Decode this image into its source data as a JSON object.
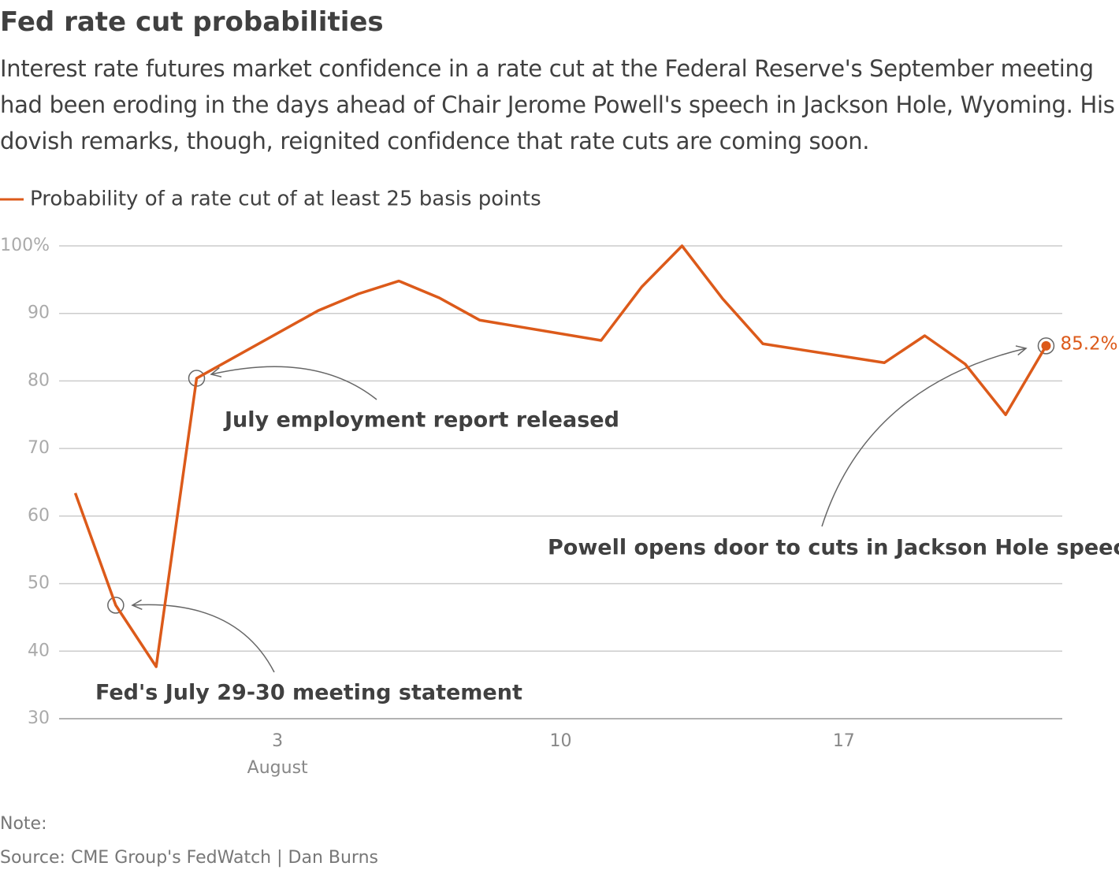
{
  "chart_data": {
    "type": "line",
    "title": "Fed rate cut probabilities",
    "subtitle": "Interest rate futures market confidence in a rate cut at the Federal Reserve's September meeting had been eroding in the days ahead of Chair Jerome Powell's speech in Jackson Hole, Wyoming. His dovish remarks, though, reignited confidence that rate cuts are coming soon.",
    "x": [
      -2,
      -1,
      0,
      1,
      4,
      5,
      6,
      7,
      8,
      11,
      12,
      13,
      14,
      15,
      18,
      19,
      20,
      21,
      22
    ],
    "xlabel": "August",
    "series": [
      {
        "name": "Probability of a rate cut of at least 25 basis points",
        "color": "#dc5a1a",
        "values": [
          63.4,
          46.8,
          37.7,
          80.4,
          90.4,
          92.9,
          94.8,
          92.3,
          89.0,
          86.0,
          93.9,
          100,
          92.2,
          85.5,
          82.7,
          86.7,
          82.5,
          75.0,
          85.2
        ],
        "value_labels": [
          null,
          null,
          null,
          null,
          null,
          null,
          null,
          null,
          null,
          null,
          null,
          null,
          null,
          null,
          null,
          null,
          null,
          null,
          "85.2%"
        ]
      }
    ],
    "xlim": [
      -2.4,
      22.4
    ],
    "xticks": [
      3,
      10,
      17
    ],
    "ylim": [
      30,
      100
    ],
    "yticks": [
      30,
      40,
      50,
      60,
      70,
      80,
      {
        "value": 100,
        "label": "100%"
      },
      90
    ],
    "grid": true,
    "annotations": [
      "July employment report released",
      "Fed's July 29-30 meeting statement",
      "Powell opens door to cuts in Jackson Hole speech"
    ],
    "note": "Note:",
    "source": "Source: CME Group's FedWatch | Dan Burns"
  }
}
